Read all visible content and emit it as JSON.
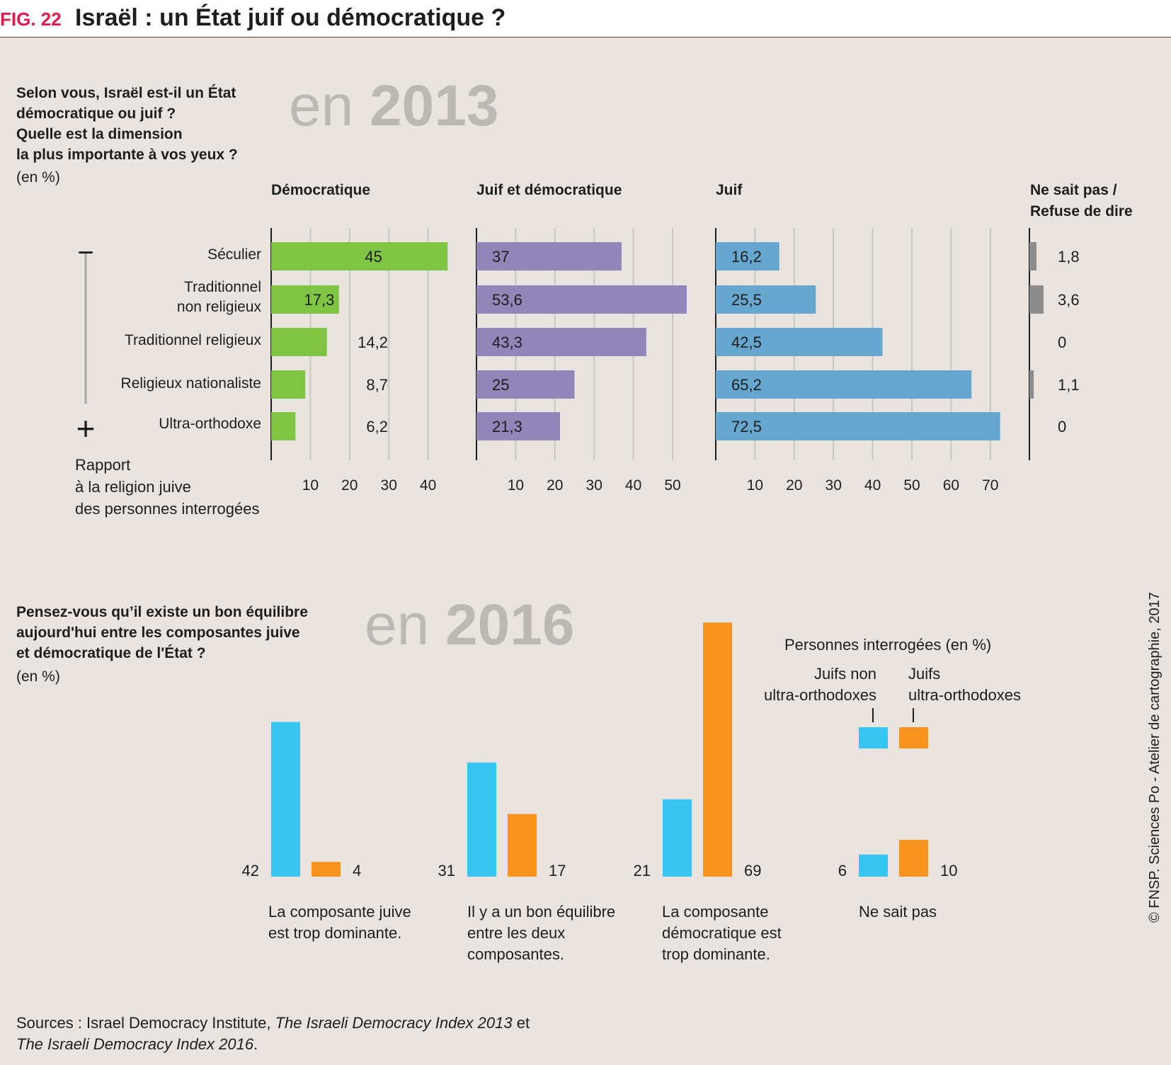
{
  "header": {
    "fig_label": "FIG. 22",
    "title": "Israël : un État juif ou démocratique ?"
  },
  "section2013": {
    "year_prefix": "en",
    "year": "2013",
    "question_lines": [
      "Selon vous, Israël est-il un État",
      "démocratique ou juif ?",
      "Quelle est la dimension",
      "la plus importante à vos yeux ?"
    ],
    "unit": "(en %)",
    "col_headers": {
      "democratique": "Démocratique",
      "juif_democratique": "Juif et démocratique",
      "juif": "Juif",
      "nsp_line1": "Ne sait pas /",
      "nsp_line2": "Refuse de dire"
    },
    "categories": [
      {
        "lines": [
          "Séculier"
        ]
      },
      {
        "lines": [
          "Traditionnel",
          "non religieux"
        ]
      },
      {
        "lines": [
          "Traditionnel religieux"
        ]
      },
      {
        "lines": [
          "Religieux nationaliste"
        ]
      },
      {
        "lines": [
          "Ultra-orthodoxe"
        ]
      }
    ],
    "scale_minus": "−",
    "scale_plus": "+",
    "axis_note": [
      "Rapport",
      "à la religion juive",
      "des personnes interrogées"
    ]
  },
  "section2016": {
    "year_prefix": "en",
    "year": "2016",
    "question_lines": [
      "Pensez-vous qu’il existe un bon équilibre",
      "aujourd'hui entre les composantes juive",
      "et démocratique de l'État ?"
    ],
    "unit": "(en %)",
    "legend": {
      "title": "Personnes interrogées (en %)",
      "non_uo": [
        "Juifs non",
        "ultra-orthodoxes"
      ],
      "uo": [
        "Juifs",
        "ultra-orthodoxes"
      ]
    },
    "captions": [
      [
        "La composante juive",
        "est trop dominante."
      ],
      [
        "Il y a un bon équilibre",
        "entre les deux",
        "composantes."
      ],
      [
        "La composante",
        "démocratique est",
        "trop dominante."
      ],
      [
        "Ne sait pas"
      ]
    ]
  },
  "chart_data": [
    {
      "type": "bar",
      "orientation": "horizontal",
      "title": "Selon vous, Israël est-il un État démocratique ou juif ? (en %) — 2013",
      "categories": [
        "Séculier",
        "Traditionnel non religieux",
        "Traditionnel religieux",
        "Religieux nationaliste",
        "Ultra-orthodoxe"
      ],
      "series": [
        {
          "name": "Démocratique",
          "color": "#80c444",
          "values": [
            45,
            17.3,
            14.2,
            8.7,
            6.2
          ],
          "labels": [
            "45",
            "17,3",
            "14,2",
            "8,7",
            "6,2"
          ],
          "xlim": [
            0,
            45
          ],
          "ticks": [
            10,
            20,
            30,
            40
          ]
        },
        {
          "name": "Juif et démocratique",
          "color": "#9285b7",
          "values": [
            37,
            53.6,
            43.3,
            25,
            21.3
          ],
          "labels": [
            "37",
            "53,6",
            "43,3",
            "25",
            "21,3"
          ],
          "xlim": [
            0,
            55
          ],
          "ticks": [
            10,
            20,
            30,
            40,
            50
          ]
        },
        {
          "name": "Juif",
          "color": "#66a6cf",
          "values": [
            16.2,
            25.5,
            42.5,
            65.2,
            72.5
          ],
          "labels": [
            "16,2",
            "25,5",
            "42,5",
            "65,2",
            "72,5"
          ],
          "xlim": [
            0,
            75
          ],
          "ticks": [
            10,
            20,
            30,
            40,
            50,
            60,
            70
          ]
        },
        {
          "name": "Ne sait pas / Refuse de dire",
          "color": "#8c8c8c",
          "values": [
            1.8,
            3.6,
            0,
            1.1,
            0
          ],
          "labels": [
            "1,8",
            "3,6",
            "0",
            "1,1",
            "0"
          ],
          "xlim": [
            0,
            5
          ],
          "ticks": []
        }
      ]
    },
    {
      "type": "bar",
      "title": "Pensez-vous qu’il existe un bon équilibre aujourd'hui entre les composantes juive et démocratique de l'État ? (en %) — 2016",
      "categories": [
        "La composante juive est trop dominante.",
        "Il y a un bon équilibre entre les deux composantes.",
        "La composante démocratique est trop dominante.",
        "Ne sait pas"
      ],
      "series": [
        {
          "name": "Juifs non ultra-orthodoxes",
          "color": "#38c5f2",
          "values": [
            42,
            31,
            21,
            6
          ]
        },
        {
          "name": "Juifs ultra-orthodoxes",
          "color": "#f7931e",
          "values": [
            4,
            17,
            69,
            10
          ]
        }
      ],
      "ylim": [
        0,
        69
      ]
    }
  ],
  "sources": {
    "prefix": "Sources : Israel Democracy Institute, ",
    "title1": "The Israeli Democracy Index 2013",
    "mid": " et",
    "title2": "The Israeli Democracy Index 2016",
    "suffix": "."
  },
  "credit": "© FNSP. Sciences Po - Atelier de cartographie, 2017"
}
